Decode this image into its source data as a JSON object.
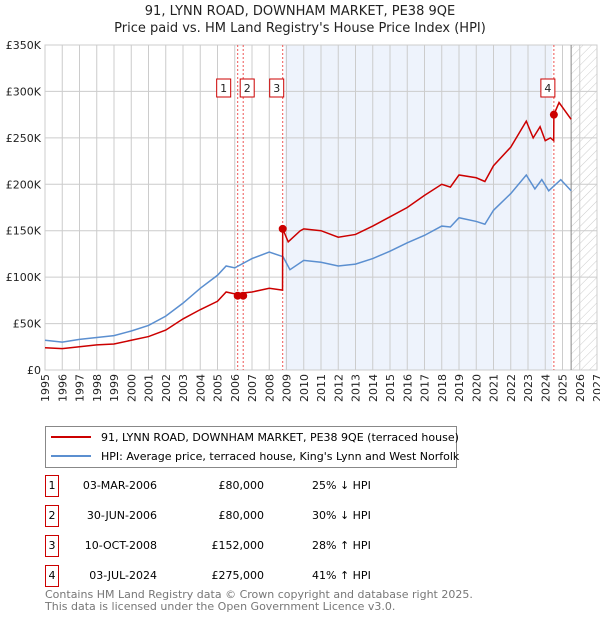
{
  "chart_data": {
    "type": "line",
    "title": "91, LYNN ROAD, DOWNHAM MARKET, PE38 9QE",
    "subtitle": "Price paid vs. HM Land Registry's House Price Index (HPI)",
    "xlim": [
      1995,
      2027
    ],
    "ylim": [
      0,
      350000
    ],
    "yticks": [
      0,
      50000,
      100000,
      150000,
      200000,
      250000,
      300000,
      350000
    ],
    "ytick_labels": [
      "£0",
      "£50K",
      "£100K",
      "£150K",
      "£200K",
      "£250K",
      "£300K",
      "£350K"
    ],
    "xticks": [
      "1995",
      "1996",
      "1997",
      "1998",
      "1999",
      "2000",
      "2001",
      "2002",
      "2003",
      "2004",
      "2005",
      "2006",
      "2007",
      "2008",
      "2009",
      "2010",
      "2011",
      "2012",
      "2013",
      "2014",
      "2015",
      "2016",
      "2017",
      "2018",
      "2019",
      "2020",
      "2021",
      "2022",
      "2023",
      "2024",
      "2025",
      "2026",
      "2027"
    ],
    "grid": true,
    "shaded_region": [
      2008.9,
      2024.4
    ],
    "forecast_region": [
      2025.5,
      2027
    ],
    "series": [
      {
        "name": "91, LYNN ROAD, DOWNHAM MARKET, PE38 9QE (terraced house)",
        "color": "#cc0000",
        "x": [
          1995,
          1996,
          1997,
          1998,
          1999,
          2000,
          2001,
          2002,
          2003,
          2004,
          2005,
          2005.5,
          2006,
          2007,
          2008,
          2008.77,
          2008.78,
          2009.1,
          2009.8,
          2010,
          2011,
          2012,
          2013,
          2014,
          2015,
          2016,
          2017,
          2018,
          2018.5,
          2019,
          2020,
          2020.5,
          2021,
          2022,
          2022.9,
          2023.3,
          2023.7,
          2024,
          2024.3,
          2024.49,
          2024.5,
          2024.8,
          2025.5
        ],
        "y": [
          24000,
          23000,
          25000,
          27000,
          28000,
          32000,
          36000,
          43000,
          55000,
          65000,
          74000,
          84000,
          82000,
          84000,
          88000,
          86000,
          152000,
          138000,
          150000,
          152000,
          150000,
          143000,
          146000,
          155000,
          165000,
          175000,
          188000,
          200000,
          197000,
          210000,
          207000,
          203000,
          220000,
          240000,
          268000,
          250000,
          262000,
          247000,
          250000,
          247000,
          275000,
          288000,
          270000
        ]
      },
      {
        "name": "HPI: Average price, terraced house, King's Lynn and West Norfolk",
        "color": "#5b8fd0",
        "x": [
          1995,
          1996,
          1997,
          1998,
          1999,
          2000,
          2001,
          2002,
          2003,
          2004,
          2005,
          2005.5,
          2006,
          2007,
          2008,
          2008.8,
          2009.2,
          2010,
          2011,
          2012,
          2013,
          2014,
          2015,
          2016,
          2017,
          2018,
          2018.5,
          2019,
          2020,
          2020.5,
          2021,
          2022,
          2022.9,
          2023.4,
          2023.8,
          2024.2,
          2024.9,
          2025.5
        ],
        "y": [
          32000,
          30000,
          33000,
          35000,
          37000,
          42000,
          48000,
          58000,
          72000,
          88000,
          102000,
          112000,
          110000,
          120000,
          127000,
          122000,
          108000,
          118000,
          116000,
          112000,
          114000,
          120000,
          128000,
          137000,
          145000,
          155000,
          154000,
          164000,
          160000,
          157000,
          172000,
          190000,
          210000,
          195000,
          205000,
          193000,
          205000,
          193000
        ]
      }
    ],
    "sales": [
      {
        "label": "1",
        "x": 2006.17,
        "y": 80000,
        "date": "03-MAR-2006",
        "price": "£80,000",
        "hpi": "25% ↓ HPI"
      },
      {
        "label": "2",
        "x": 2006.49,
        "y": 80000,
        "date": "30-JUN-2006",
        "price": "£80,000",
        "hpi": "30% ↓ HPI"
      },
      {
        "label": "3",
        "x": 2008.78,
        "y": 152000,
        "date": "10-OCT-2008",
        "price": "£152,000",
        "hpi": "28% ↑ HPI"
      },
      {
        "label": "4",
        "x": 2024.5,
        "y": 275000,
        "date": "03-JUL-2024",
        "price": "£275,000",
        "hpi": "41% ↑ HPI"
      }
    ]
  },
  "footer": {
    "line1": "Contains HM Land Registry data © Crown copyright and database right 2025.",
    "line2": "This data is licensed under the Open Government Licence v3.0."
  }
}
